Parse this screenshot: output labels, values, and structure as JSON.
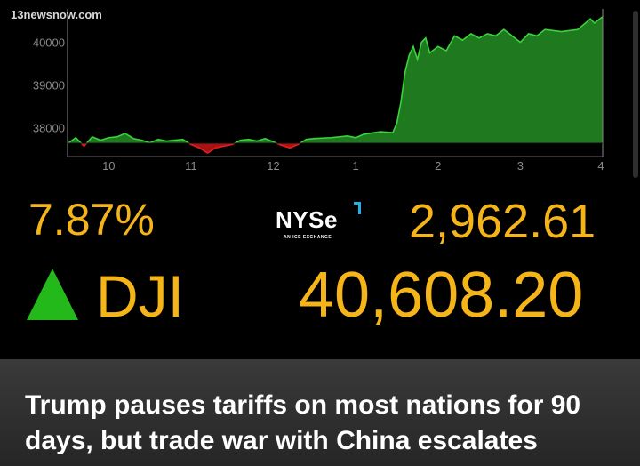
{
  "source": {
    "watermark": "13newsnow.com"
  },
  "chart_data": {
    "type": "area",
    "title": "",
    "xlabel": "",
    "ylabel": "",
    "x_ticks": [
      "10",
      "11",
      "12",
      "1",
      "2",
      "3",
      "4"
    ],
    "y_ticks": [
      38000,
      39000,
      40000
    ],
    "ylim": [
      37400,
      40700
    ],
    "xlim": [
      9.5,
      16.0
    ],
    "baseline": 37630,
    "grid": false,
    "series": [
      {
        "points": [
          [
            9.5,
            37620
          ],
          [
            9.6,
            37760
          ],
          [
            9.7,
            37560
          ],
          [
            9.8,
            37780
          ],
          [
            9.9,
            37700
          ],
          [
            10.0,
            37760
          ],
          [
            10.1,
            37780
          ],
          [
            10.2,
            37860
          ],
          [
            10.3,
            37740
          ],
          [
            10.4,
            37700
          ],
          [
            10.5,
            37640
          ],
          [
            10.6,
            37720
          ],
          [
            10.7,
            37680
          ],
          [
            10.9,
            37720
          ],
          [
            11.0,
            37600
          ],
          [
            11.1,
            37520
          ],
          [
            11.2,
            37400
          ],
          [
            11.3,
            37520
          ],
          [
            11.4,
            37560
          ],
          [
            11.5,
            37600
          ],
          [
            11.6,
            37700
          ],
          [
            11.7,
            37720
          ],
          [
            11.8,
            37680
          ],
          [
            11.9,
            37740
          ],
          [
            12.0,
            37660
          ],
          [
            12.1,
            37580
          ],
          [
            12.2,
            37520
          ],
          [
            12.3,
            37600
          ],
          [
            12.4,
            37720
          ],
          [
            12.5,
            37740
          ],
          [
            12.7,
            37760
          ],
          [
            12.9,
            37800
          ],
          [
            13.0,
            37760
          ],
          [
            13.1,
            37840
          ],
          [
            13.3,
            37900
          ],
          [
            13.45,
            37880
          ],
          [
            13.5,
            38100
          ],
          [
            13.55,
            38600
          ],
          [
            13.6,
            39300
          ],
          [
            13.65,
            39700
          ],
          [
            13.7,
            39900
          ],
          [
            13.75,
            39600
          ],
          [
            13.8,
            40000
          ],
          [
            13.85,
            40100
          ],
          [
            13.9,
            39750
          ],
          [
            14.0,
            39900
          ],
          [
            14.1,
            39800
          ],
          [
            14.2,
            40150
          ],
          [
            14.3,
            40050
          ],
          [
            14.4,
            40200
          ],
          [
            14.5,
            40100
          ],
          [
            14.6,
            40200
          ],
          [
            14.7,
            40150
          ],
          [
            14.8,
            40300
          ],
          [
            14.9,
            40150
          ],
          [
            15.0,
            40000
          ],
          [
            15.1,
            40200
          ],
          [
            15.2,
            40150
          ],
          [
            15.3,
            40300
          ],
          [
            15.5,
            40250
          ],
          [
            15.7,
            40300
          ],
          [
            15.85,
            40550
          ],
          [
            15.9,
            40450
          ],
          [
            16.0,
            40600
          ]
        ]
      }
    ],
    "colors": {
      "above": "#1f7a1f",
      "below": "#a81212",
      "line_above": "#3ad43a",
      "line_below": "#e02020"
    }
  },
  "stats": {
    "nya_change": "7.87%",
    "nya_value": "2,962.61",
    "ticker": "DJI",
    "dji_value": "40,608.20",
    "direction": "up"
  },
  "nyse": {
    "wordmark": "NYSe",
    "subtitle": "AN ICE EXCHANGE"
  },
  "caption": {
    "headline": "Trump pauses tariffs on most nations for 90 days, but trade war with China escalates"
  },
  "theme": {
    "accent": "#f5b418",
    "up": "#23b91b"
  }
}
